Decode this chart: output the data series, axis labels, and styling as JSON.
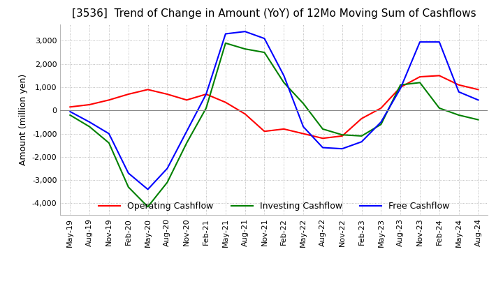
{
  "title": "[3536]  Trend of Change in Amount (YoY) of 12Mo Moving Sum of Cashflows",
  "ylabel": "Amount (million yen)",
  "ylim": [
    -4500,
    3700
  ],
  "yticks": [
    -4000,
    -3000,
    -2000,
    -1000,
    0,
    1000,
    2000,
    3000
  ],
  "x_labels": [
    "May-19",
    "Aug-19",
    "Nov-19",
    "Feb-20",
    "May-20",
    "Aug-20",
    "Nov-20",
    "Feb-21",
    "May-21",
    "Aug-21",
    "Nov-21",
    "Feb-22",
    "May-22",
    "Aug-22",
    "Nov-22",
    "Feb-23",
    "May-23",
    "Aug-23",
    "Nov-23",
    "Feb-24",
    "May-24",
    "Aug-24"
  ],
  "operating": [
    150,
    250,
    450,
    700,
    900,
    700,
    450,
    700,
    350,
    -150,
    -900,
    -800,
    -1000,
    -1200,
    -1100,
    -350,
    100,
    1000,
    1450,
    1500,
    1100,
    900
  ],
  "investing": [
    -200,
    -700,
    -1400,
    -3300,
    -4150,
    -3100,
    -1400,
    100,
    2900,
    2650,
    2500,
    1200,
    300,
    -800,
    -1050,
    -1100,
    -600,
    1100,
    1200,
    100,
    -200,
    -400
  ],
  "free": [
    -50,
    -500,
    -1000,
    -2700,
    -3400,
    -2500,
    -900,
    700,
    3300,
    3400,
    3100,
    1500,
    -700,
    -1600,
    -1650,
    -1350,
    -500,
    950,
    2950,
    2950,
    800,
    450
  ],
  "operating_color": "#ff0000",
  "investing_color": "#008000",
  "free_color": "#0000ff",
  "background_color": "#ffffff",
  "grid_color": "#aaaaaa",
  "title_fontsize": 11,
  "label_fontsize": 9,
  "tick_fontsize": 8,
  "legend_fontsize": 9
}
